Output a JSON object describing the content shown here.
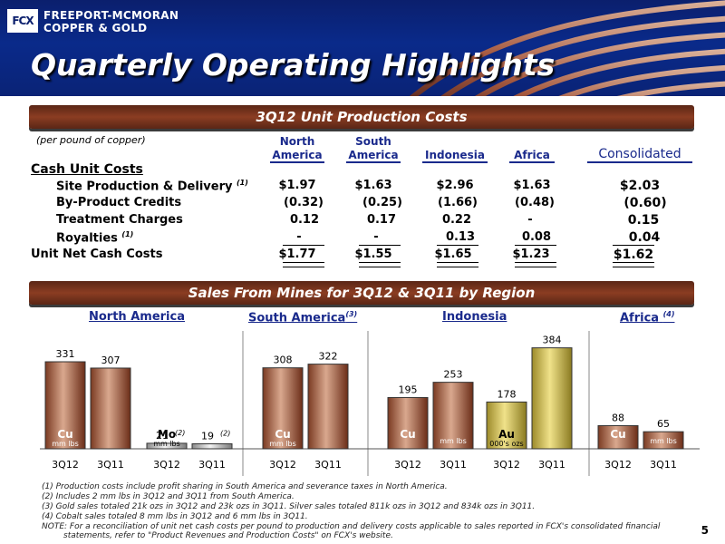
{
  "header": {
    "company_line1": "FREEPORT-MCMORAN",
    "company_line2": "COPPER & GOLD",
    "logo": "FCX",
    "title": "Quarterly Operating Highlights"
  },
  "unit_costs": {
    "section_title": "3Q12 Unit Production Costs",
    "per_pound_note": "(per pound of copper)",
    "columns": [
      {
        "line1": "North",
        "line2": "America"
      },
      {
        "line1": "South",
        "line2": "America"
      },
      {
        "line1": "",
        "line2": "Indonesia"
      },
      {
        "line1": "",
        "line2": "Africa"
      },
      {
        "line1": "",
        "line2": "Consolidated"
      }
    ],
    "cash_unit_costs_label": "Cash Unit Costs",
    "rows": [
      {
        "label": "Site Production & Delivery",
        "note": "(1)",
        "values": [
          "$1.97",
          "$1.63",
          "$2.96",
          "$1.63",
          "$2.03"
        ]
      },
      {
        "label": "By-Product Credits",
        "note": "",
        "values": [
          "(0.32)",
          "(0.25)",
          "(1.66)",
          "(0.48)",
          "(0.60)"
        ]
      },
      {
        "label": "Treatment Charges",
        "note": "",
        "values": [
          "0.12",
          "0.17",
          "0.22",
          "-",
          "0.15"
        ]
      },
      {
        "label": "Royalties",
        "note": "(1)",
        "values": [
          "-",
          "-",
          "0.13",
          "0.08",
          "0.04"
        ]
      }
    ],
    "net_row": {
      "label": "Unit Net Cash Costs",
      "values": [
        "$1.77",
        "$1.55",
        "$1.65",
        "$1.23",
        "$1.62"
      ]
    }
  },
  "sales": {
    "section_title": "Sales From Mines for 3Q12 & 3Q11 by Region",
    "regions": [
      {
        "name": "North America",
        "note": ""
      },
      {
        "name": "South America",
        "note": "(3)"
      },
      {
        "name": "Indonesia",
        "note": ""
      },
      {
        "name": "Africa",
        "note": "(4)"
      }
    ]
  },
  "chart_data": {
    "type": "bar",
    "groups": [
      {
        "region": "North America",
        "commodity": "Cu",
        "unit": "mm lbs",
        "style": "copper",
        "bars": [
          {
            "period": "3Q12",
            "value": 331
          },
          {
            "period": "3Q11",
            "value": 307
          }
        ]
      },
      {
        "region": "North America",
        "commodity": "Mo",
        "unit": "mm lbs",
        "style": "silver",
        "bars": [
          {
            "period": "3Q12",
            "value": 21,
            "note": "(2)"
          },
          {
            "period": "3Q11",
            "value": 19,
            "note": "(2)"
          }
        ]
      },
      {
        "region": "South America",
        "commodity": "Cu",
        "unit": "mm lbs",
        "style": "copper",
        "bars": [
          {
            "period": "3Q12",
            "value": 308
          },
          {
            "period": "3Q11",
            "value": 322
          }
        ]
      },
      {
        "region": "Indonesia",
        "commodity": "Cu",
        "unit": "mm lbs",
        "style": "copper",
        "bars": [
          {
            "period": "3Q12",
            "value": 195
          },
          {
            "period": "3Q11",
            "value": 253
          }
        ]
      },
      {
        "region": "Indonesia",
        "commodity": "Au",
        "unit": "000's ozs",
        "style": "gold",
        "bars": [
          {
            "period": "3Q12",
            "value": 178
          },
          {
            "period": "3Q11",
            "value": 384
          }
        ]
      },
      {
        "region": "Africa",
        "commodity": "Cu",
        "unit": "mm lbs",
        "style": "copper",
        "bars": [
          {
            "period": "3Q12",
            "value": 88
          },
          {
            "period": "3Q11",
            "value": 65
          }
        ]
      }
    ]
  },
  "footnotes": [
    "(1) Production costs include profit sharing in South America and severance taxes in North America.",
    "(2) Includes 2 mm lbs in 3Q12 and 3Q11 from South America.",
    "(3) Gold sales totaled 21k ozs in 3Q12 and 23k ozs in 3Q11. Silver sales totaled 811k ozs in 3Q12 and 834k ozs in 3Q11.",
    "(4) Cobalt sales totaled 8 mm lbs in 3Q12 and 6 mm lbs in 3Q11.",
    "NOTE: For a reconciliation of unit net cash costs per pound to production and delivery costs applicable to sales reported in FCX's consolidated financial",
    "statements, refer to \"Product Revenues and Production Costs\" on FCX's website."
  ],
  "page_number": "5",
  "colors": {
    "navy": "#0b1f6d",
    "accent_blue": "#1a2a8c",
    "copper": "#8b3d22",
    "gold": "#c8b040",
    "silver": "#a8a8a8"
  }
}
